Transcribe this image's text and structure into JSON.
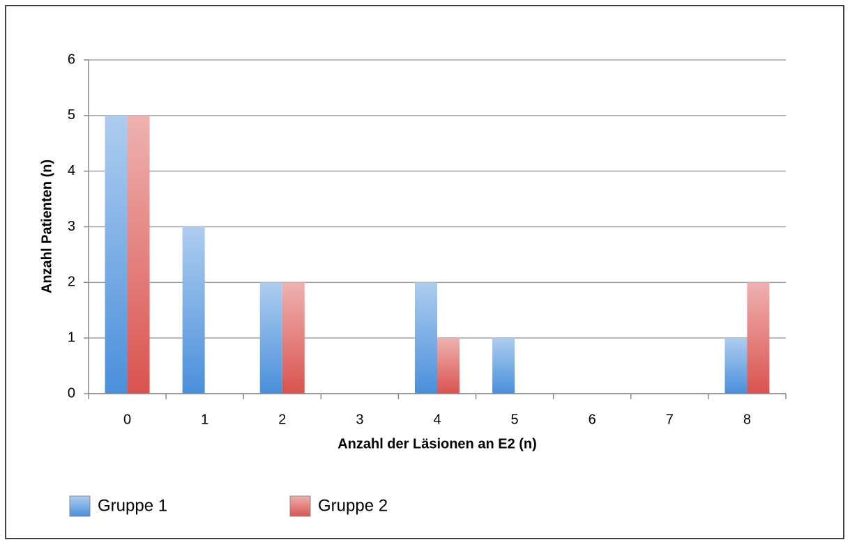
{
  "chart_data": {
    "type": "bar",
    "categories": [
      "0",
      "1",
      "2",
      "3",
      "4",
      "5",
      "6",
      "7",
      "8"
    ],
    "series": [
      {
        "name": "Gruppe 1",
        "color": "#4a8fdb",
        "values": [
          5,
          3,
          2,
          0,
          2,
          1,
          0,
          0,
          1
        ]
      },
      {
        "name": "Gruppe 2",
        "color": "#d9534f",
        "values": [
          5,
          0,
          2,
          0,
          1,
          0,
          0,
          0,
          2
        ]
      }
    ],
    "xlabel": "Anzahl der Läsionen an E2 (n)",
    "ylabel": "Anzahl Patienten (n)",
    "ylim": [
      0,
      6
    ],
    "yticks": [
      0,
      1,
      2,
      3,
      4,
      5,
      6
    ],
    "grid": true,
    "legend": "bottom-left"
  }
}
